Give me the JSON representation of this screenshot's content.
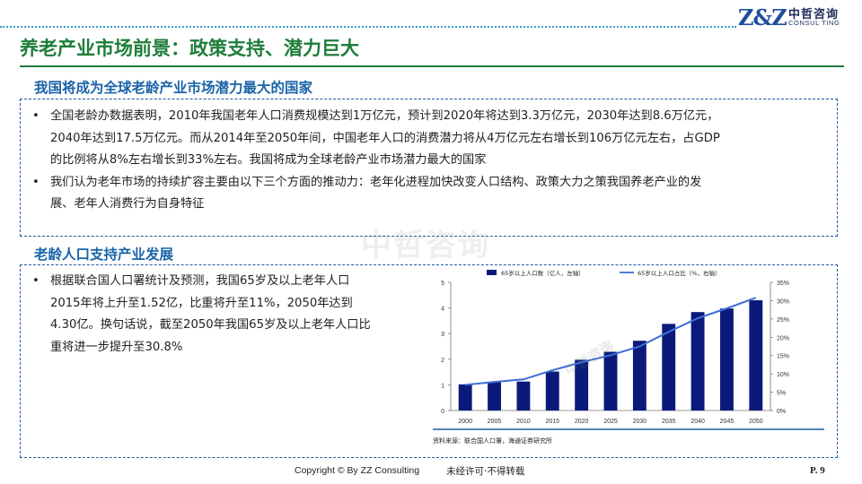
{
  "brand": {
    "logo_mark": "Z&Z",
    "name_cn": "中哲咨询",
    "name_en": "CONSUL TING"
  },
  "page_title": "养老产业市场前景：政策支持、潜力巨大",
  "sections": [
    {
      "heading": "我国将成为全球老龄产业市场潜力最大的国家",
      "bullets": [
        {
          "lines": [
            "全国老龄办数据表明，2010年我国老年人口消费规模达到1万亿元，预计到2020年将达到3.3万亿元，2030年达到8.6万亿元，",
            "2040年达到17.5万亿元。而从2014年至2050年间，中国老年人口的消费潜力将从4万亿元左右增长到106万亿元左右，占GDP",
            "的比例将从8%左右增长到33%左右。我国将成为全球老龄产业市场潜力最大的国家"
          ]
        },
        {
          "lines": [
            "我们认为老年市场的持续扩容主要由以下三个方面的推动力：老年化进程加快改变人口结构、政策大力之策我国养老产业的发",
            "展、老年人消费行为自身特征"
          ]
        }
      ]
    },
    {
      "heading": "老龄人口支持产业发展",
      "bullets": [
        {
          "lines": [
            "根据联合国人口署统计及预测，我国65岁及以上老年人口",
            "2015年将上升至1.52亿，比重将升至11%，2050年达到",
            "4.30亿。换句话说，截至2050年我国65岁及以上老年人口比",
            "重将进一步提升至30.8%"
          ]
        }
      ]
    }
  ],
  "watermarks": {
    "large": "中哲咨询",
    "chart": "中哲咨询"
  },
  "chart_data": {
    "type": "bar",
    "categories": [
      "2000",
      "2005",
      "2010",
      "2015",
      "2020",
      "2025",
      "2030",
      "2035",
      "2040",
      "2045",
      "2050"
    ],
    "series": [
      {
        "name": "65岁以上人口数（亿人，左轴）",
        "type": "bar",
        "axis": "left",
        "color": "#0b1a7a",
        "values": [
          1.02,
          1.11,
          1.13,
          1.52,
          1.98,
          2.29,
          2.72,
          3.38,
          3.84,
          3.98,
          4.3
        ]
      },
      {
        "name": "65岁以上人口占比（%，右轴）",
        "type": "line",
        "axis": "right",
        "color": "#3d6fd6",
        "values": [
          7.0,
          7.8,
          8.5,
          11.0,
          13.2,
          15.1,
          17.5,
          21.5,
          25.2,
          27.9,
          30.8
        ]
      }
    ],
    "y_left": {
      "min": 0,
      "max": 5,
      "ticks": [
        "0",
        "1",
        "2",
        "3",
        "4",
        "5"
      ]
    },
    "y_right": {
      "min": 0,
      "max": 35,
      "ticks": [
        "0%",
        "5%",
        "10%",
        "15%",
        "20%",
        "25%",
        "30%",
        "35%"
      ]
    },
    "legend_position": "top",
    "grid": false,
    "source": "资料来源：联合国人口署，海通证券研究所"
  },
  "footer": {
    "copyright": "Copyright © By  ZZ Consulting",
    "notice": "未经许可·不得转载",
    "page_number": "P. 9"
  }
}
